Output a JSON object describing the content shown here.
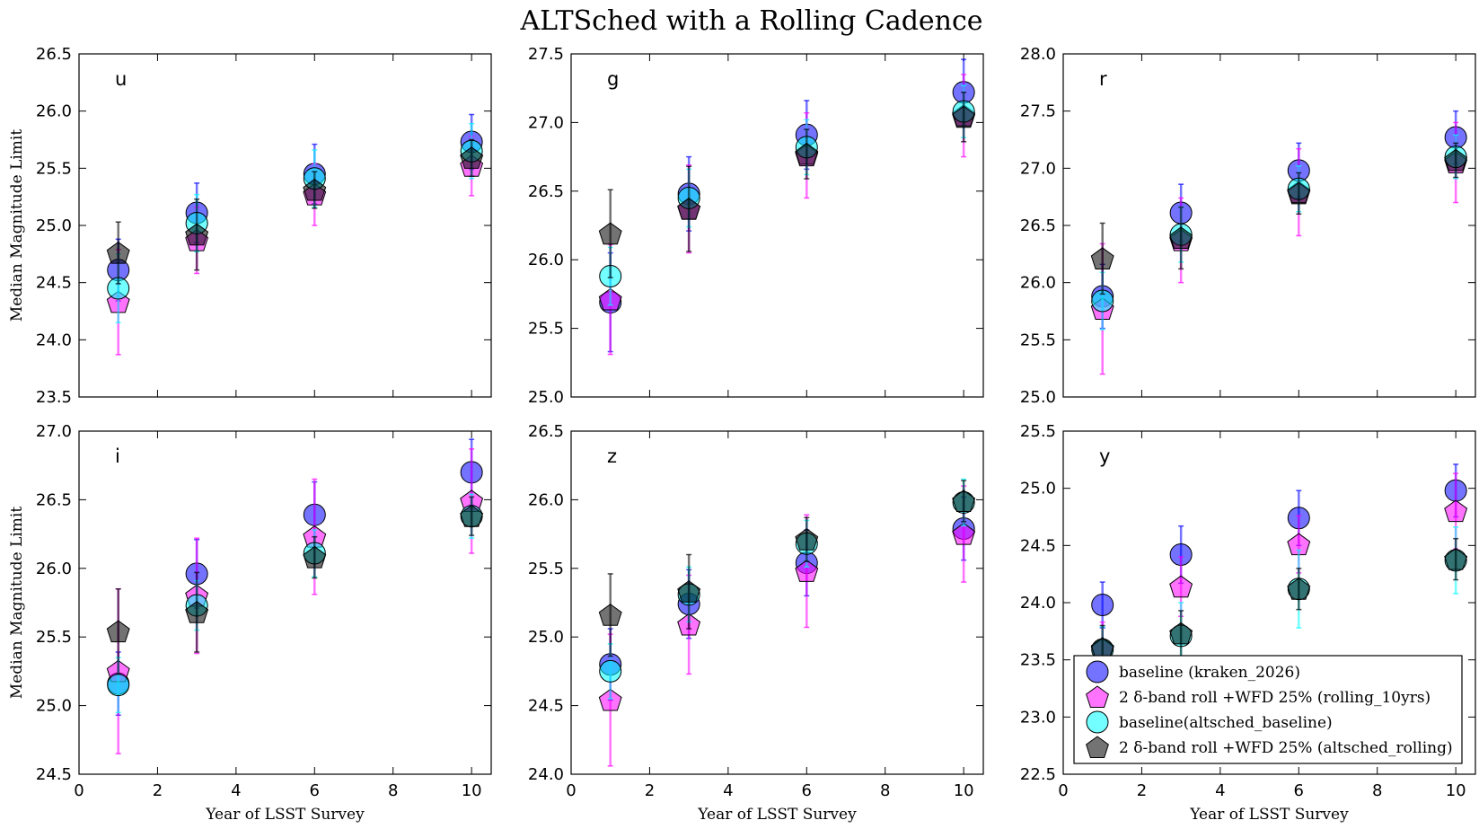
{
  "figure": {
    "title": "ALTSched with a Rolling Cadence"
  },
  "chart_data": {
    "type": "scatter",
    "title": "ALTSched with a Rolling Cadence",
    "xlabel": "Year of LSST Survey",
    "ylabel": "Median Magnitude Limit",
    "x": [
      1,
      3,
      6,
      10
    ],
    "xlim": [
      0,
      10.5
    ],
    "xticks": [
      0,
      2,
      4,
      6,
      8,
      10
    ],
    "legend_position": "lower-right (bottom-right panel)",
    "series_style": [
      {
        "marker": "circle",
        "color": "#0000ff",
        "ecolor": "#0000ff"
      },
      {
        "marker": "pentagon",
        "color": "#ff00ff",
        "ecolor": "#ff00ff"
      },
      {
        "marker": "circle",
        "color": "#00ffff",
        "ecolor": "#00ffff"
      },
      {
        "marker": "pentagon",
        "color": "#000000",
        "ecolor": "#000000"
      }
    ],
    "legend": [
      "baseline (kraken_2026)",
      "2 δ-band roll +WFD 25% (rolling_10yrs)",
      "baseline(altsched_baseline)",
      "2 δ-band roll +WFD 25% (altsched_rolling)"
    ],
    "panels": [
      {
        "label": "u",
        "ylim": [
          23.5,
          26.5
        ],
        "yticks": [
          "23.5",
          "24.0",
          "24.5",
          "25.0",
          "25.5",
          "26.0",
          "26.5"
        ],
        "series": [
          {
            "values": [
              24.61,
              25.11,
              25.45,
              25.73
            ],
            "err": [
              0.27,
              0.26,
              0.26,
              0.24
            ]
          },
          {
            "values": [
              24.33,
              24.87,
              25.27,
              25.52
            ],
            "err": [
              0.46,
              0.29,
              0.27,
              0.26
            ]
          },
          {
            "values": [
              24.45,
              25.02,
              25.41,
              25.65
            ],
            "err": [
              0.3,
              0.25,
              0.25,
              0.24
            ]
          },
          {
            "values": [
              24.76,
              24.92,
              25.31,
              25.59
            ],
            "err": [
              0.27,
              0.31,
              0.16,
              0.16
            ]
          }
        ]
      },
      {
        "label": "g",
        "ylim": [
          25.0,
          27.5
        ],
        "yticks": [
          "25.0",
          "25.5",
          "26.0",
          "26.5",
          "27.0",
          "27.5"
        ],
        "series": [
          {
            "values": [
              25.69,
              26.48,
              26.91,
              27.22
            ],
            "err": [
              0.36,
              0.27,
              0.25,
              0.24
            ]
          },
          {
            "values": [
              25.71,
              26.37,
              26.76,
              27.05
            ],
            "err": [
              0.4,
              0.32,
              0.31,
              0.3
            ]
          },
          {
            "values": [
              25.88,
              26.45,
              26.82,
              27.08
            ],
            "err": [
              0.21,
              0.21,
              0.2,
              0.19
            ]
          },
          {
            "values": [
              26.19,
              26.37,
              26.77,
              27.04
            ],
            "err": [
              0.32,
              0.31,
              0.18,
              0.18
            ]
          }
        ]
      },
      {
        "label": "r",
        "ylim": [
          25.0,
          28.0
        ],
        "yticks": [
          "25.0",
          "25.5",
          "26.0",
          "26.5",
          "27.0",
          "27.5",
          "28.0"
        ],
        "series": [
          {
            "values": [
              25.88,
              26.61,
              26.98,
              27.27
            ],
            "err": [
              0.28,
              0.25,
              0.24,
              0.23
            ]
          },
          {
            "values": [
              25.77,
              26.37,
              26.79,
              27.05
            ],
            "err": [
              0.57,
              0.37,
              0.38,
              0.35
            ]
          },
          {
            "values": [
              25.84,
              26.42,
              26.82,
              27.1
            ],
            "err": [
              0.25,
              0.24,
              0.2,
              0.19
            ]
          },
          {
            "values": [
              26.21,
              26.39,
              26.78,
              27.07
            ],
            "err": [
              0.31,
              0.27,
              0.18,
              0.15
            ]
          }
        ]
      },
      {
        "label": "i",
        "ylim": [
          24.5,
          27.0
        ],
        "yticks": [
          "24.5",
          "25.0",
          "25.5",
          "26.0",
          "26.5",
          "27.0"
        ],
        "series": [
          {
            "values": [
              25.16,
              25.96,
              26.39,
              26.7
            ],
            "err": [
              0.23,
              0.25,
              0.24,
              0.24
            ]
          },
          {
            "values": [
              25.25,
              25.8,
              26.23,
              26.49
            ],
            "err": [
              0.6,
              0.42,
              0.42,
              0.38
            ]
          },
          {
            "values": [
              25.15,
              25.73,
              26.11,
              26.38
            ],
            "err": [
              0.2,
              0.18,
              0.17,
              0.16
            ]
          },
          {
            "values": [
              25.54,
              25.68,
              26.08,
              26.38
            ],
            "err": [
              0.31,
              0.29,
              0.15,
              0.14
            ]
          }
        ]
      },
      {
        "label": "z",
        "ylim": [
          24.0,
          26.5
        ],
        "yticks": [
          "24.0",
          "24.5",
          "25.0",
          "25.5",
          "26.0",
          "26.5"
        ],
        "series": [
          {
            "values": [
              24.8,
              25.24,
              25.54,
              25.79
            ],
            "err": [
              0.26,
              0.25,
              0.24,
              0.23
            ]
          },
          {
            "values": [
              24.54,
              25.09,
              25.48,
              25.75
            ],
            "err": [
              0.48,
              0.36,
              0.41,
              0.35
            ]
          },
          {
            "values": [
              24.75,
              25.31,
              25.68,
              25.98
            ],
            "err": [
              0.2,
              0.2,
              0.17,
              0.17
            ]
          },
          {
            "values": [
              25.16,
              25.33,
              25.71,
              25.99
            ],
            "err": [
              0.3,
              0.27,
              0.16,
              0.15
            ]
          }
        ]
      },
      {
        "label": "y",
        "ylim": [
          22.5,
          25.5
        ],
        "yticks": [
          "22.5",
          "23.0",
          "23.5",
          "24.0",
          "24.5",
          "25.0",
          "25.5"
        ],
        "series": [
          {
            "values": [
              23.98,
              24.42,
              24.74,
              24.98
            ],
            "err": [
              0.2,
              0.25,
              0.24,
              0.23
            ]
          },
          {
            "values": [
              23.59,
              24.14,
              24.51,
              24.8
            ],
            "err": [
              0.24,
              0.26,
              0.25,
              0.33
            ]
          },
          {
            "values": [
              23.59,
              23.71,
              24.12,
              24.37
            ],
            "err": [
              0.2,
              0.29,
              0.34,
              0.29
            ]
          },
          {
            "values": [
              23.6,
              23.73,
              24.12,
              24.38
            ],
            "err": [
              0.2,
              0.2,
              0.18,
              0.18
            ]
          }
        ]
      }
    ]
  }
}
